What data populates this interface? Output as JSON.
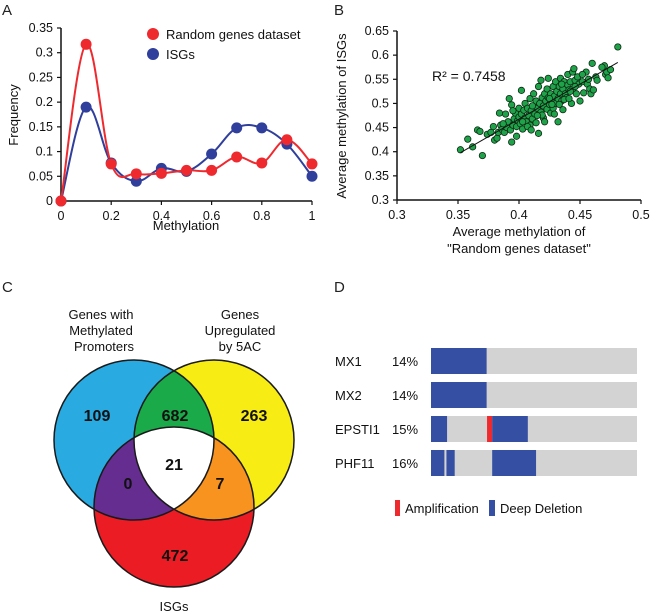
{
  "panels": {
    "a": "A",
    "b": "B",
    "c": "C",
    "d": "D"
  },
  "chart_data": [
    {
      "type": "line",
      "id": "panel-a",
      "title": "",
      "xlabel": "Methylation",
      "ylabel": "Frequency",
      "xlim": [
        0,
        1
      ],
      "ylim": [
        0,
        0.35
      ],
      "xticks": [
        "0",
        "0.2",
        "0.4",
        "0.6",
        "0.8",
        "1"
      ],
      "yticks": [
        "0",
        "0.05",
        "0.1",
        "0.15",
        "0.2",
        "0.25",
        "0.3",
        "0.35"
      ],
      "x": [
        0,
        0.1,
        0.2,
        0.3,
        0.4,
        0.5,
        0.6,
        0.7,
        0.8,
        0.9,
        1.0
      ],
      "legend_position": "top-right",
      "grid": false,
      "series": [
        {
          "name": "Random genes dataset",
          "color": "#ee2a2f",
          "values": [
            0,
            0.317,
            0.075,
            0.055,
            0.056,
            0.062,
            0.062,
            0.089,
            0.077,
            0.124,
            0.075
          ]
        },
        {
          "name": "ISGs",
          "color": "#2f3f9b",
          "values": [
            0,
            0.19,
            0.077,
            0.04,
            0.066,
            0.06,
            0.095,
            0.148,
            0.148,
            0.115,
            0.05
          ]
        }
      ]
    },
    {
      "type": "scatter",
      "id": "panel-b",
      "xlabel_line1": "Average methylation of",
      "xlabel_line2": "\"Random genes dataset\"",
      "ylabel": "Average methylation of ISGs",
      "xlim": [
        0.3,
        0.5
      ],
      "ylim": [
        0.3,
        0.65
      ],
      "xticks": [
        "0.3",
        "0.35",
        "0.4",
        "0.45",
        "0.5"
      ],
      "yticks": [
        "0.3",
        "0.35",
        "0.4",
        "0.45",
        "0.5",
        "0.55",
        "0.6",
        "0.65"
      ],
      "annotation": "R² = 0.7458",
      "point_color": "#1fa34a",
      "trendline": {
        "x": [
          0.352,
          0.481
        ],
        "y": [
          0.398,
          0.585
        ]
      },
      "points": [
        [
          0.352,
          0.404
        ],
        [
          0.358,
          0.426
        ],
        [
          0.362,
          0.41
        ],
        [
          0.366,
          0.445
        ],
        [
          0.368,
          0.442
        ],
        [
          0.37,
          0.392
        ],
        [
          0.374,
          0.436
        ],
        [
          0.377,
          0.44
        ],
        [
          0.379,
          0.452
        ],
        [
          0.38,
          0.424
        ],
        [
          0.382,
          0.428
        ],
        [
          0.383,
          0.44
        ],
        [
          0.384,
          0.48
        ],
        [
          0.385,
          0.455
        ],
        [
          0.386,
          0.446
        ],
        [
          0.388,
          0.44
        ],
        [
          0.389,
          0.478
        ],
        [
          0.39,
          0.45
        ],
        [
          0.391,
          0.462
        ],
        [
          0.392,
          0.51
        ],
        [
          0.393,
          0.445
        ],
        [
          0.394,
          0.42
        ],
        [
          0.394,
          0.497
        ],
        [
          0.395,
          0.455
        ],
        [
          0.396,
          0.468
        ],
        [
          0.397,
          0.48
        ],
        [
          0.398,
          0.452
        ],
        [
          0.399,
          0.465
        ],
        [
          0.4,
          0.49
        ],
        [
          0.4,
          0.472
        ],
        [
          0.401,
          0.458
        ],
        [
          0.402,
          0.527
        ],
        [
          0.402,
          0.478
        ],
        [
          0.403,
          0.447
        ],
        [
          0.404,
          0.486
        ],
        [
          0.405,
          0.47
        ],
        [
          0.405,
          0.5
        ],
        [
          0.406,
          0.462
        ],
        [
          0.407,
          0.49
        ],
        [
          0.408,
          0.475
        ],
        [
          0.409,
          0.51
        ],
        [
          0.409,
          0.455
        ],
        [
          0.41,
          0.485
        ],
        [
          0.411,
          0.468
        ],
        [
          0.412,
          0.52
        ],
        [
          0.412,
          0.495
        ],
        [
          0.413,
          0.478
        ],
        [
          0.414,
          0.46
        ],
        [
          0.414,
          0.505
        ],
        [
          0.415,
          0.49
        ],
        [
          0.416,
          0.438
        ],
        [
          0.416,
          0.535
        ],
        [
          0.417,
          0.5
        ],
        [
          0.418,
          0.482
        ],
        [
          0.418,
          0.548
        ],
        [
          0.419,
          0.512
        ],
        [
          0.42,
          0.47
        ],
        [
          0.42,
          0.495
        ],
        [
          0.421,
          0.52
        ],
        [
          0.422,
          0.505
        ],
        [
          0.423,
          0.488
        ],
        [
          0.423,
          0.53
        ],
        [
          0.424,
          0.512
        ],
        [
          0.424,
          0.552
        ],
        [
          0.425,
          0.498
        ],
        [
          0.426,
          0.48
        ],
        [
          0.426,
          0.52
        ],
        [
          0.427,
          0.508
        ],
        [
          0.428,
          0.535
        ],
        [
          0.428,
          0.49
        ],
        [
          0.429,
          0.515
        ],
        [
          0.43,
          0.5
        ],
        [
          0.43,
          0.545
        ],
        [
          0.431,
          0.525
        ],
        [
          0.432,
          0.51
        ],
        [
          0.432,
          0.462
        ],
        [
          0.433,
          0.535
        ],
        [
          0.434,
          0.52
        ],
        [
          0.434,
          0.552
        ],
        [
          0.435,
          0.505
        ],
        [
          0.436,
          0.53
        ],
        [
          0.436,
          0.487
        ],
        [
          0.437,
          0.545
        ],
        [
          0.438,
          0.52
        ],
        [
          0.439,
          0.512
        ],
        [
          0.44,
          0.538
        ],
        [
          0.44,
          0.56
        ],
        [
          0.441,
          0.528
        ],
        [
          0.442,
          0.545
        ],
        [
          0.443,
          0.5
        ],
        [
          0.444,
          0.565
        ],
        [
          0.444,
          0.53
        ],
        [
          0.445,
          0.572
        ],
        [
          0.446,
          0.548
        ],
        [
          0.447,
          0.52
        ],
        [
          0.448,
          0.555
        ],
        [
          0.449,
          0.54
        ],
        [
          0.45,
          0.505
        ],
        [
          0.452,
          0.545
        ],
        [
          0.453,
          0.522
        ],
        [
          0.455,
          0.565
        ],
        [
          0.456,
          0.54
        ],
        [
          0.458,
          0.53
        ],
        [
          0.459,
          0.52
        ],
        [
          0.46,
          0.583
        ],
        [
          0.461,
          0.528
        ],
        [
          0.463,
          0.555
        ],
        [
          0.47,
          0.578
        ],
        [
          0.471,
          0.56
        ],
        [
          0.472,
          0.565
        ],
        [
          0.473,
          0.553
        ],
        [
          0.475,
          0.57
        ],
        [
          0.481,
          0.617
        ],
        [
          0.398,
          0.432
        ],
        [
          0.403,
          0.462
        ],
        [
          0.407,
          0.452
        ],
        [
          0.411,
          0.495
        ],
        [
          0.419,
          0.476
        ],
        [
          0.421,
          0.462
        ],
        [
          0.427,
          0.498
        ],
        [
          0.433,
          0.498
        ],
        [
          0.437,
          0.508
        ],
        [
          0.441,
          0.51
        ],
        [
          0.446,
          0.535
        ],
        [
          0.387,
          0.458
        ],
        [
          0.395,
          0.485
        ],
        [
          0.41,
          0.445
        ],
        [
          0.415,
          0.475
        ],
        [
          0.425,
          0.51
        ],
        [
          0.429,
          0.478
        ],
        [
          0.435,
          0.54
        ],
        [
          0.442,
          0.525
        ],
        [
          0.452,
          0.56
        ],
        [
          0.457,
          0.55
        ],
        [
          0.464,
          0.548
        ],
        [
          0.468,
          0.575
        ]
      ]
    },
    {
      "type": "venn",
      "id": "panel-c",
      "sets": [
        {
          "name": "Genes with Methylated Promoters",
          "label_lines": [
            "Genes with",
            "Methylated",
            "Promoters"
          ],
          "color": "#29abe2"
        },
        {
          "name": "Genes Upregulated by 5AC",
          "label_lines": [
            "Genes",
            "Upregulated",
            "by 5AC"
          ],
          "color": "#f7ec13"
        },
        {
          "name": "ISGs",
          "label_lines": [
            "ISGs"
          ],
          "color": "#ec1c24"
        }
      ],
      "regions": {
        "methylated_only": "109",
        "upregulated_only": "263",
        "isgs_only": "472",
        "methylated_and_upregulated": "682",
        "methylated_and_isgs": "0",
        "upregulated_and_isgs": "7",
        "all_three": "21"
      },
      "region_colors": {
        "methylated_and_upregulated": "#1aaa4a",
        "methylated_and_isgs": "#662d91",
        "upregulated_and_isgs": "#f7931e",
        "all_three": "#ffffff"
      }
    },
    {
      "type": "oncoprint",
      "id": "panel-d",
      "n_samples_scale": 100,
      "rows": [
        {
          "gene": "MX1",
          "percent": "14%",
          "alterations": [
            {
              "type": "deep_deletion",
              "start": 0,
              "end": 0.27
            }
          ]
        },
        {
          "gene": "MX2",
          "percent": "14%",
          "alterations": [
            {
              "type": "deep_deletion",
              "start": 0,
              "end": 0.27
            }
          ]
        },
        {
          "gene": "EPSTI1",
          "percent": "15%",
          "alterations": [
            {
              "type": "deep_deletion",
              "start": 0,
              "end": 0.078
            },
            {
              "type": "amplification",
              "start": 0.272,
              "end": 0.297
            },
            {
              "type": "deep_deletion",
              "start": 0.297,
              "end": 0.47
            }
          ]
        },
        {
          "gene": "PHF11",
          "percent": "16%",
          "alterations": [
            {
              "type": "deep_deletion",
              "start": 0,
              "end": 0.065
            },
            {
              "type": "deep_deletion",
              "start": 0.075,
              "end": 0.115
            },
            {
              "type": "deep_deletion",
              "start": 0.297,
              "end": 0.51
            }
          ]
        }
      ],
      "legend": [
        {
          "type": "amplification",
          "label": "Amplification",
          "color": "#ee2a2f"
        },
        {
          "type": "deep_deletion",
          "label": "Deep Deletion",
          "color": "#3550a3"
        }
      ],
      "background_color": "#d3d3d3"
    }
  ]
}
